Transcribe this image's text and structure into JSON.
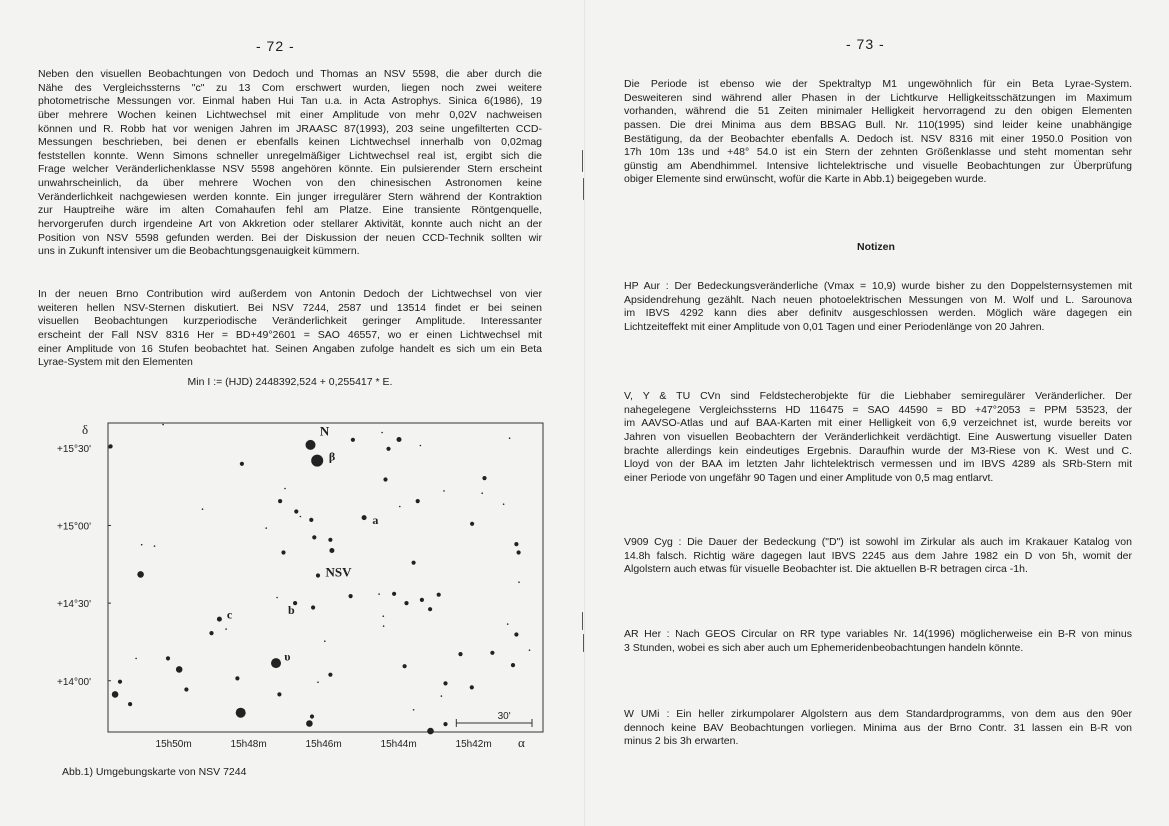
{
  "left_page": {
    "page_number": "- 72 -",
    "paragraphs": [
      {
        "lines": [
          "Neben den visuellen Beobachtungen von Dedoch und Thomas an NSV 5598, die aber durch die",
          "Nähe des Vergleichssterns \"c\" zu 13 Com erschwert wurden, liegen noch zwei weitere",
          "photometrische Messungen vor. Einmal haben Hui Tan u.a. in Acta Astrophys. Sinica 6(1986), 19",
          "über mehrere Wochen keinen Lichtwechsel mit einer Amplitude von mehr 0,02V nachweisen",
          "können und R. Robb hat vor wenigen Jahren im JRAASC 87(1993), 203 seine ungefilterten CCD-",
          "Messungen beschrieben, bei denen er ebenfalls keinen Lichtwechsel innerhalb von 0,02mag",
          "feststellen konnte. Wenn Simons schneller unregelmäßiger Lichtwechsel real ist, ergibt sich die",
          "Frage welcher Veränderlichenklasse NSV 5598 angehören könnte. Ein pulsierender Stern erscheint",
          "unwahrscheinlich, da über mehrere Wochen von den chinesischen Astronomen keine",
          "Veränderlichkeit nachgewiesen werden konnte. Ein junger irregulärer Stern während der Kontraktion",
          "zur Hauptreihe wäre im alten Comahaufen fehl am Platze. Eine transiente Röntgenquelle,",
          "hervorgerufen durch irgendeine Art von Akkretion oder stellarer Aktivität, konnte auch nicht an der",
          "Position von NSV 5598 gefunden werden. Bei der Diskussion der neuen CCD-Technik sollten wir",
          "uns in Zukunft intensiver um die Beobachtungsgenauigkeit kümmern."
        ]
      },
      {
        "lines": [
          "In der neuen Brno Contribution wird außerdem von Antonin Dedoch der Lichtwechsel von vier",
          "weiteren hellen NSV-Sternen diskutiert. Bei NSV 7244, 2587 und 13514 findet er bei seinen",
          "visuellen Beobachtungen kurzperiodische Veränderlichkeit geringer Amplitude. Interessanter",
          "erscheint der Fall NSV 8316 Her = BD+49°2601 = SAO 46557, wo er einen Lichtwechsel mit",
          "einer Amplitude von 16 Stufen beobachtet hat. Seinen Angaben zufolge handelt es sich um ein Beta",
          "Lyrae-System mit den Elementen"
        ]
      }
    ],
    "formula": "Min I := (HJD) 2448392,524 + 0,255417 * E.",
    "figure_caption": "Abb.1) Umgebungskarte von NSV 7244"
  },
  "chart_data": {
    "type": "scatter",
    "title": "",
    "xlabel": "α",
    "ylabel": "δ",
    "x_unit": "RA minutes after 15h",
    "y_unit": "Dec degrees",
    "xlim": [
      51.75,
      40.15
    ],
    "ylim": [
      13.67,
      15.66
    ],
    "x_ticks": [
      {
        "value": 50,
        "label": "15h50m"
      },
      {
        "value": 48,
        "label": "15h48m"
      },
      {
        "value": 46,
        "label": "15h46m"
      },
      {
        "value": 44,
        "label": "15h44m"
      },
      {
        "value": 42,
        "label": "15h42m"
      }
    ],
    "y_ticks": [
      {
        "value": 15.5,
        "label": "+15°30'"
      },
      {
        "value": 15.0,
        "label": "+15°00'"
      },
      {
        "value": 14.5,
        "label": "+14°30'"
      },
      {
        "value": 14.0,
        "label": "+14°00'"
      }
    ],
    "grid": false,
    "scale_bar": {
      "label": "30'",
      "arcmin": 30
    },
    "stars": [
      [
        51.68,
        15.509,
        2
      ],
      [
        50.28,
        15.65,
        1
      ],
      [
        48.18,
        15.397,
        2
      ],
      [
        46.35,
        15.519,
        4
      ],
      [
        46.17,
        15.418,
        5
      ],
      [
        45.22,
        15.552,
        2
      ],
      [
        44.44,
        15.599,
        1
      ],
      [
        43.99,
        15.554,
        2.5
      ],
      [
        44.27,
        15.494,
        2
      ],
      [
        43.42,
        15.515,
        1
      ],
      [
        41.04,
        15.562,
        1
      ],
      [
        44.35,
        15.296,
        2
      ],
      [
        41.71,
        15.305,
        2
      ],
      [
        42.79,
        15.223,
        1
      ],
      [
        41.77,
        15.208,
        1
      ],
      [
        47.03,
        15.238,
        1
      ],
      [
        47.16,
        15.157,
        2
      ],
      [
        43.49,
        15.157,
        2
      ],
      [
        41.2,
        15.137,
        1
      ],
      [
        43.97,
        15.122,
        1
      ],
      [
        49.23,
        15.105,
        1
      ],
      [
        46.73,
        15.09,
        2
      ],
      [
        46.62,
        15.058,
        1
      ],
      [
        46.33,
        15.036,
        2
      ],
      [
        44.92,
        15.051,
        2.5
      ],
      [
        47.53,
        14.983,
        1
      ],
      [
        42.04,
        15.011,
        2
      ],
      [
        46.25,
        14.923,
        2
      ],
      [
        45.82,
        14.908,
        2
      ],
      [
        50.85,
        14.876,
        1
      ],
      [
        50.51,
        14.867,
        1
      ],
      [
        40.86,
        14.88,
        2
      ],
      [
        47.07,
        14.826,
        2
      ],
      [
        45.78,
        14.839,
        2.5
      ],
      [
        40.8,
        14.826,
        2
      ],
      [
        43.6,
        14.76,
        2
      ],
      [
        50.88,
        14.685,
        3
      ],
      [
        46.15,
        14.678,
        2
      ],
      [
        40.79,
        14.635,
        1
      ],
      [
        45.28,
        14.545,
        2
      ],
      [
        44.52,
        14.558,
        1
      ],
      [
        44.12,
        14.56,
        2
      ],
      [
        42.93,
        14.554,
        2
      ],
      [
        47.24,
        14.536,
        1
      ],
      [
        46.76,
        14.5,
        2
      ],
      [
        43.79,
        14.5,
        2
      ],
      [
        43.38,
        14.521,
        2
      ],
      [
        46.28,
        14.472,
        2
      ],
      [
        43.16,
        14.461,
        2
      ],
      [
        48.78,
        14.397,
        2.5
      ],
      [
        44.41,
        14.416,
        1
      ],
      [
        44.4,
        14.352,
        1
      ],
      [
        41.09,
        14.365,
        1
      ],
      [
        48.6,
        14.333,
        1
      ],
      [
        48.99,
        14.307,
        2
      ],
      [
        40.86,
        14.298,
        2
      ],
      [
        45.97,
        14.255,
        1
      ],
      [
        51.0,
        14.144,
        1
      ],
      [
        50.15,
        14.144,
        2
      ],
      [
        42.35,
        14.172,
        2
      ],
      [
        41.5,
        14.18,
        2
      ],
      [
        40.51,
        14.197,
        1
      ],
      [
        47.27,
        14.114,
        4
      ],
      [
        49.85,
        14.073,
        3
      ],
      [
        43.84,
        14.094,
        2
      ],
      [
        40.95,
        14.101,
        2
      ],
      [
        48.3,
        14.015,
        2
      ],
      [
        45.82,
        14.039,
        2
      ],
      [
        46.15,
        13.991,
        1
      ],
      [
        51.43,
        13.994,
        2
      ],
      [
        42.75,
        13.983,
        2
      ],
      [
        42.05,
        13.957,
        2
      ],
      [
        49.66,
        13.944,
        2
      ],
      [
        51.56,
        13.912,
        3
      ],
      [
        47.18,
        13.912,
        2
      ],
      [
        42.86,
        13.901,
        1
      ],
      [
        51.16,
        13.85,
        2
      ],
      [
        43.6,
        13.813,
        1
      ],
      [
        48.21,
        13.794,
        4
      ],
      [
        46.31,
        13.77,
        2
      ],
      [
        46.38,
        13.725,
        3
      ],
      [
        42.75,
        13.721,
        2
      ],
      [
        43.15,
        13.676,
        3
      ]
    ],
    "labels": [
      {
        "text": "N",
        "ra": 46.1,
        "dec": 15.58
      },
      {
        "text": "β",
        "ra": 45.86,
        "dec": 15.42
      },
      {
        "text": "a",
        "ra": 44.7,
        "dec": 15.01
      },
      {
        "text": "NSV",
        "ra": 45.95,
        "dec": 14.67
      },
      {
        "text": "b",
        "ra": 46.95,
        "dec": 14.43
      },
      {
        "text": "c",
        "ra": 48.58,
        "dec": 14.4
      },
      {
        "text": "υ",
        "ra": 47.05,
        "dec": 14.13
      }
    ]
  },
  "right_page": {
    "page_number": "- 73 -",
    "intro": {
      "lines": [
        "Die Periode ist ebenso wie der Spektraltyp M1 ungewöhnlich für ein Beta Lyrae-System.",
        "Desweiteren sind während aller Phasen in der Lichtkurve Helligkeitsschätzungen im Maximum",
        "vorhanden, während die 51 Zeiten minimaler Helligkeit hervorragend zu den obigen Elementen",
        "passen. Die drei Minima aus dem BBSAG Bull. Nr. 110(1995) sind leider keine unabhängige",
        "Bestätigung, da der Beobachter ebenfalls A. Dedoch ist. NSV 8316 mit einer 1950.0 Position von",
        "17h 10m 13s und +48° 54.0 ist ein Stern der zehnten Größenklasse und steht momentan sehr",
        "günstig am Abendhimmel. Intensive lichtelektrische und visuelle Beobachtungen zur Überprüfung",
        "obiger Elemente sind erwünscht, wofür die Karte in Abb.1) beigegeben wurde."
      ]
    },
    "section_heading": "Notizen",
    "notes": [
      {
        "lines": [
          "HP Aur : Der Bedeckungsveränderliche (Vmax = 10,9) wurde bisher zu den Doppelsternsystemen mit",
          "Apsidendrehung gezählt. Nach neuen photoelektrischen Messungen von M. Wolf und L. Sarounova",
          "im IBVS 4292 kann dies aber definitv ausgeschlossen werden. Möglich wäre dagegen ein",
          "Lichtzeiteffekt mit einer Amplitude von 0,01 Tagen und einer Periodenlänge von 20 Jahren."
        ]
      },
      {
        "lines": [
          "V, Y & TU CVn sind Feldstecherobjekte für die Liebhaber semiregulärer Veränderlicher. Der",
          "nahegelegene Vergleichssterns HD 116475 = SAO 44590 = BD +47°2053 = PPM 53523, der",
          "im AAVSO-Atlas und auf BAA-Karten mit einer Helligkeit von 6,9 verzeichnet ist, wurde bereits vor",
          "Jahren von visuellen Beobachtern der Veränderlichkeit verdächtigt. Eine Auswertung visueller Daten",
          "brachte allerdings kein eindeutiges Ergebnis. Daraufhin wurde der M3-Riese von K. West und C.",
          "Lloyd von der BAA im letzten Jahr lichtelektrisch vermessen und im IBVS 4289 als SRb-Stern mit",
          "einer Periode von ungefähr 90 Tagen und einer Amplitude von 0,5 mag entlarvt."
        ]
      },
      {
        "lines": [
          "V909 Cyg : Die Dauer der Bedeckung (\"D\") ist sowohl im Zirkular als auch im Krakauer Katalog von",
          "14.8h falsch. Richtig wäre dagegen laut IBVS 2245 aus dem Jahre 1982 ein D von 5h, womit der",
          "Algolstern auch etwas für visuelle Beobachter ist. Die aktuellen B-R betragen circa -1h."
        ]
      },
      {
        "lines": [
          "AR Her : Nach GEOS Circular on RR type variables Nr. 14(1996) möglicherweise ein B-R von minus",
          "3 Stunden, wobei es sich aber auch um Ephemeridenbeobachtungen handeln könnte."
        ]
      },
      {
        "lines": [
          "W UMi : Ein heller zirkumpolarer Algolstern aus dem Standardprogramms, von dem aus den 90er",
          "dennoch keine BAV Beobachtungen vorliegen. Minima aus der Brno Contr. 31 lassen ein B-R von",
          "minus 2 bis 3h erwarten."
        ]
      }
    ]
  }
}
